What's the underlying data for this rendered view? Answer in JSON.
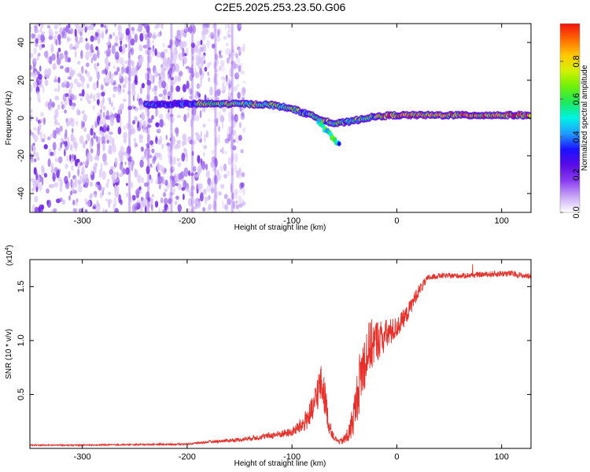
{
  "title": "C2E5.2025.253.23.50.G06",
  "colors": {
    "snr_line": "#e8302a",
    "axis": "#000000",
    "colormap": [
      "#ffffff",
      "#c9a8f5",
      "#8a3cf0",
      "#5a0ce6",
      "#1a10ff",
      "#1f9bff",
      "#00f2e6",
      "#1ee85a",
      "#6cf00a",
      "#d4f000",
      "#ffc800",
      "#ff6a00",
      "#f01010"
    ]
  },
  "chart_data": [
    {
      "type": "heatmap",
      "xlabel": "Height of straight line (km)",
      "ylabel": "Frequency (Hz)",
      "xlim": [
        -350,
        128
      ],
      "ylim": [
        -50,
        50
      ],
      "xticks": [
        -300,
        -200,
        -100,
        0,
        100
      ],
      "yticks": [
        -40,
        -20,
        0,
        20,
        40
      ],
      "colorbar": {
        "label": "Normalized spectral amplitude",
        "range": [
          0,
          1
        ],
        "ticks": [
          "0.0",
          "0.2",
          "0.4",
          "0.6",
          "0.8"
        ]
      },
      "ridge": {
        "description_points": [
          [
            -240,
            7
          ],
          [
            -200,
            7.5
          ],
          [
            -150,
            7.5
          ],
          [
            -120,
            7
          ],
          [
            -100,
            5
          ],
          [
            -80,
            1
          ],
          [
            -60,
            -3
          ],
          [
            -45,
            -2
          ],
          [
            -30,
            0
          ],
          [
            -15,
            1
          ],
          [
            0,
            1.5
          ],
          [
            50,
            1.5
          ],
          [
            100,
            1.5
          ],
          [
            128,
            1.5
          ]
        ],
        "branch": [
          [
            -75,
            -2
          ],
          [
            -65,
            -8
          ],
          [
            -55,
            -14
          ]
        ]
      },
      "noise_region_x": [
        -350,
        -145
      ]
    },
    {
      "type": "line",
      "xlabel": "Height of straight line (km)",
      "ylabel": "SNR (10 * v/v)",
      "y_multiplier": "(x10",
      "y_multiplier_exp": "4",
      "y_multiplier_close": ")",
      "xlim": [
        -350,
        128
      ],
      "ylim": [
        0,
        1.75
      ],
      "xticks": [
        -300,
        -200,
        -100,
        0,
        100
      ],
      "yticks": [
        "0.5",
        "1.0",
        "1.5"
      ],
      "ytick_values": [
        0.5,
        1.0,
        1.5
      ],
      "series": [
        {
          "x": [
            -350,
            -300,
            -250,
            -200,
            -180,
            -150,
            -120,
            -100,
            -90,
            -80,
            -75,
            -72,
            -68,
            -65,
            -60,
            -55,
            -50,
            -45,
            -40,
            -35,
            -30,
            -25,
            -20,
            -15,
            -10,
            0,
            10,
            20,
            30,
            40,
            60,
            80,
            100,
            110,
            120,
            128
          ],
          "y": [
            0.03,
            0.03,
            0.035,
            0.04,
            0.06,
            0.08,
            0.12,
            0.15,
            0.22,
            0.35,
            0.55,
            0.6,
            0.45,
            0.22,
            0.1,
            0.06,
            0.08,
            0.15,
            0.35,
            0.65,
            0.85,
            0.95,
            1.0,
            1.02,
            1.05,
            1.12,
            1.25,
            1.45,
            1.58,
            1.6,
            1.6,
            1.61,
            1.62,
            1.62,
            1.6,
            1.6
          ],
          "noise": [
            0.006,
            0.006,
            0.007,
            0.008,
            0.012,
            0.018,
            0.03,
            0.04,
            0.08,
            0.14,
            0.18,
            0.18,
            0.16,
            0.08,
            0.03,
            0.02,
            0.05,
            0.1,
            0.2,
            0.28,
            0.28,
            0.25,
            0.2,
            0.18,
            0.15,
            0.1,
            0.08,
            0.06,
            0.03,
            0.025,
            0.025,
            0.025,
            0.03,
            0.03,
            0.025,
            0.025
          ]
        }
      ]
    }
  ]
}
